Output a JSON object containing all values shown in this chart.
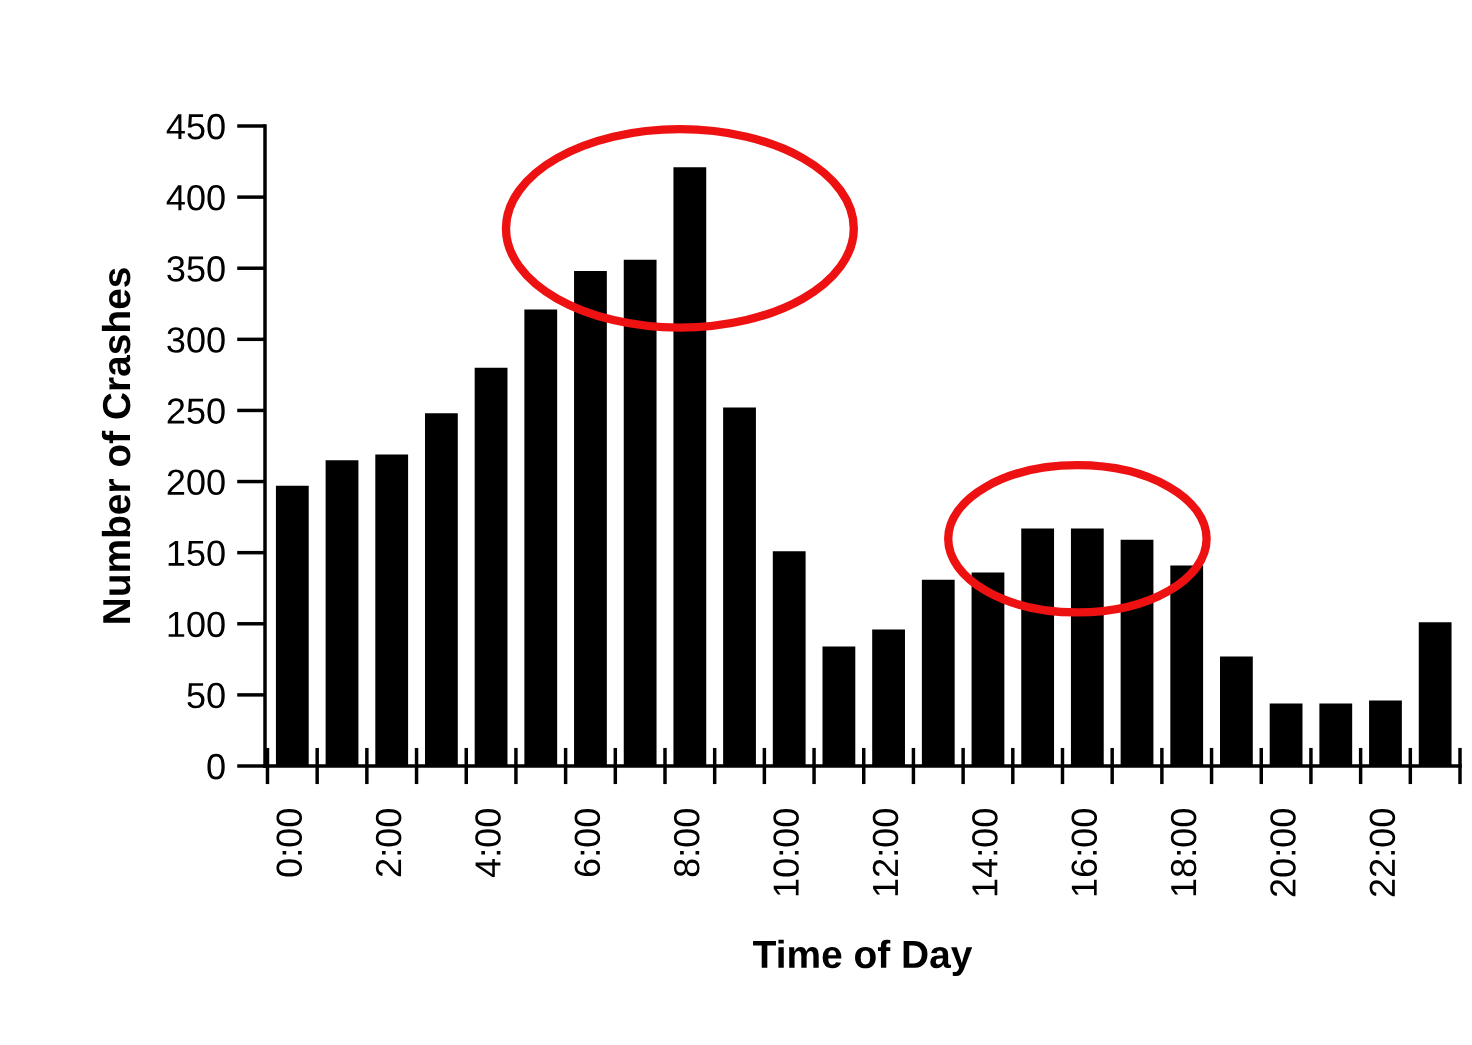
{
  "chart_data": {
    "type": "bar",
    "xlabel": "Time of Day",
    "ylabel": "Number of Crashes",
    "categories": [
      "0:00",
      null,
      "2:00",
      null,
      "4:00",
      null,
      "6:00",
      null,
      "8:00",
      null,
      "10:00",
      null,
      "12:00",
      null,
      "14:00",
      null,
      "16:00",
      null,
      "18:00",
      null,
      "20:00",
      null,
      "22:00",
      null
    ],
    "values": [
      197,
      215,
      219,
      248,
      280,
      321,
      348,
      356,
      421,
      252,
      151,
      84,
      96,
      131,
      136,
      167,
      167,
      159,
      141,
      77,
      44,
      44,
      46,
      101
    ],
    "color": "#000000",
    "ylim": [
      0,
      450
    ],
    "yticks": [
      0,
      50,
      100,
      150,
      200,
      250,
      300,
      350,
      400,
      450
    ],
    "grid": false,
    "legend": false
  }
}
